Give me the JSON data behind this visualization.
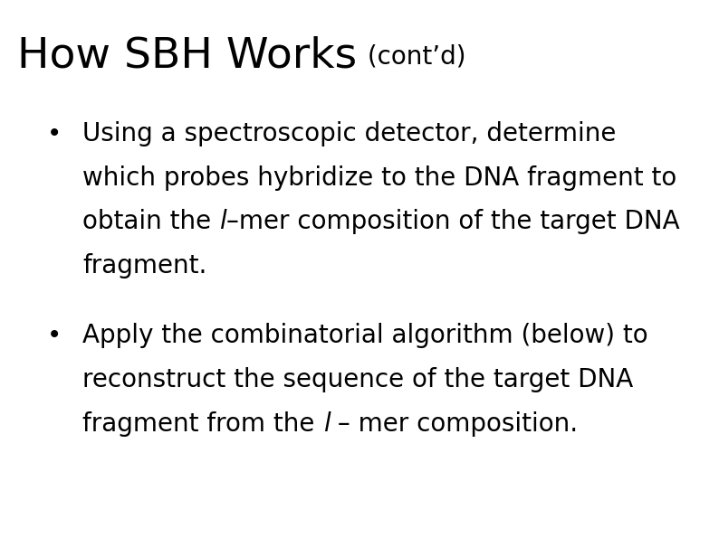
{
  "title_main": "How SBH Works",
  "title_suffix": " (cont’d)",
  "background_color": "#ffffff",
  "text_color": "#000000",
  "title_fontsize": 34,
  "title_suffix_fontsize": 20,
  "bullet_fontsize": 20,
  "bullet1_lines": [
    "Using a spectroscopic detector, determine",
    "which probes hybridize to the DNA fragment to",
    "obtain the ",
    "fragment."
  ],
  "bullet1_line2_italic": "l",
  "bullet1_line2_suffix": "–mer composition of the target DNA",
  "bullet2_lines": [
    "Apply the combinatorial algorithm (below) to",
    "reconstruct the sequence of the target DNA",
    "fragment from the "
  ],
  "bullet2_line2_italic": "l",
  "bullet2_line2_suffix": " – mer composition.",
  "bullet_symbol": "•",
  "fig_width": 7.94,
  "fig_height": 5.95,
  "dpi": 100
}
